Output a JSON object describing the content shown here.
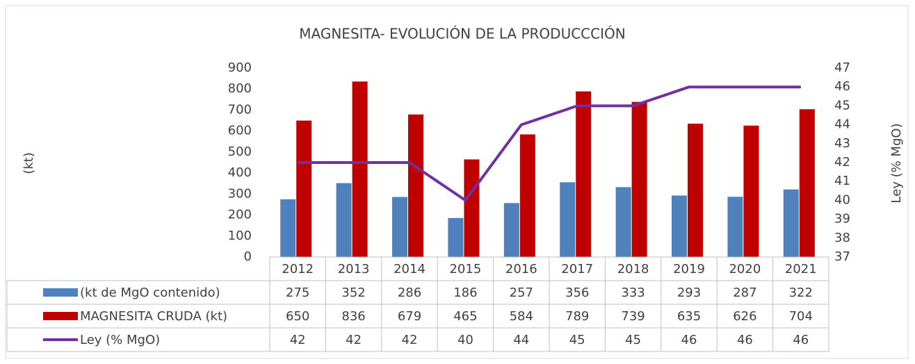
{
  "chart_data": {
    "type": "bar",
    "title": "MAGNESITA- EVOLUCIÓN DE LA PRODUCCCIÓN",
    "y_label": "(kt)",
    "y2_label": "Ley (% MgO)",
    "categories": [
      "2012",
      "2013",
      "2014",
      "2015",
      "2016",
      "2017",
      "2018",
      "2019",
      "2020",
      "2021"
    ],
    "series": [
      {
        "name": "(kt de MgO contenido)",
        "color": "#4f81bd",
        "type": "bar",
        "values": [
          275,
          352,
          286,
          186,
          257,
          356,
          333,
          293,
          287,
          322
        ]
      },
      {
        "name": "MAGNESITA CRUDA (kt)",
        "color": "#c00000",
        "type": "bar",
        "values": [
          650,
          836,
          679,
          465,
          584,
          789,
          739,
          635,
          626,
          704
        ]
      },
      {
        "name": "Ley (% MgO)",
        "color": "#7030a0",
        "type": "line",
        "axis": "y2",
        "values": [
          42,
          42,
          42,
          40,
          44,
          45,
          45,
          46,
          46,
          46
        ]
      }
    ],
    "ylim": [
      0,
      900
    ],
    "yticks": [
      0,
      100,
      200,
      300,
      400,
      500,
      600,
      700,
      800,
      900
    ],
    "y2lim": [
      37,
      47
    ],
    "y2ticks": [
      37,
      38,
      39,
      40,
      41,
      42,
      43,
      44,
      45,
      46,
      47
    ],
    "grid": false,
    "data_table": true
  }
}
